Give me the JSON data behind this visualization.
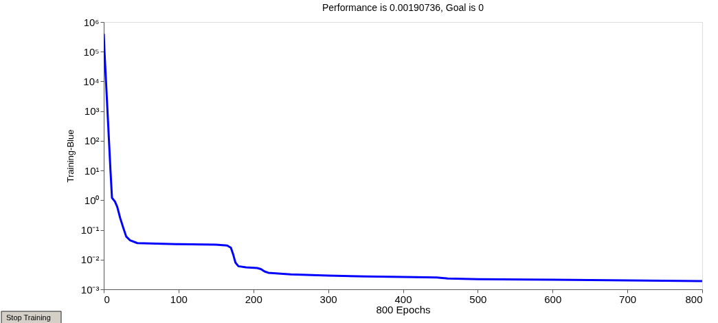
{
  "chart_data": {
    "type": "line",
    "title": "Performance is 0.00190736, Goal is 0",
    "xlabel": "800 Epochs",
    "ylabel": "Training-Blue",
    "log": "y",
    "grid": false,
    "marker": "none",
    "line_style": "solid",
    "xlim": [
      0,
      800
    ],
    "xticks": [
      0,
      100,
      200,
      300,
      400,
      500,
      600,
      700,
      800
    ],
    "ylim": [
      0.001,
      1000000
    ],
    "yticks": [
      {
        "value": 0.001,
        "label": "10⁻³"
      },
      {
        "value": 0.01,
        "label": "10⁻²"
      },
      {
        "value": 0.1,
        "label": "10⁻¹"
      },
      {
        "value": 1,
        "label": "10⁰"
      },
      {
        "value": 10,
        "label": "10¹"
      },
      {
        "value": 100,
        "label": "10²"
      },
      {
        "value": 1000,
        "label": "10³"
      },
      {
        "value": 10000,
        "label": "10⁴"
      },
      {
        "value": 100000,
        "label": "10⁵"
      },
      {
        "value": 1000000,
        "label": "10⁶"
      }
    ],
    "annotations": [
      "Stop Training"
    ],
    "series": [
      {
        "color": "#0000ff",
        "x": [
          0,
          1,
          3,
          5,
          7,
          9,
          11,
          15,
          18,
          22,
          26,
          30,
          35,
          45,
          100,
          150,
          165,
          170,
          173,
          176,
          180,
          190,
          205,
          210,
          215,
          220,
          250,
          300,
          350,
          400,
          445,
          460,
          500,
          600,
          700,
          800
        ],
        "values": [
          400000,
          100000,
          10000,
          1000,
          100,
          10,
          1.2,
          0.9,
          0.6,
          0.25,
          0.12,
          0.06,
          0.045,
          0.036,
          0.033,
          0.032,
          0.03,
          0.025,
          0.015,
          0.008,
          0.006,
          0.0055,
          0.0052,
          0.0048,
          0.004,
          0.0036,
          0.0032,
          0.0029,
          0.0027,
          0.0026,
          0.0025,
          0.0023,
          0.0022,
          0.0021,
          0.002,
          0.0019
        ]
      }
    ]
  }
}
